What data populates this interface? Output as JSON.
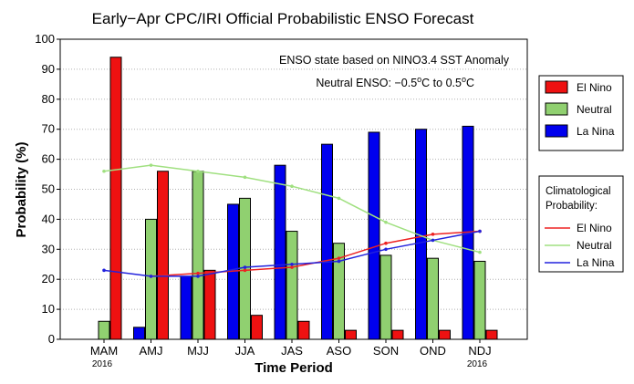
{
  "chart_data": {
    "type": "bar",
    "title": "Early−Apr CPC/IRI Official Probabilistic ENSO Forecast",
    "xlabel": "Time Period",
    "ylabel": "Probability (%)",
    "ylim": [
      0,
      100
    ],
    "yticks": [
      "0",
      "10",
      "20",
      "30",
      "40",
      "50",
      "60",
      "70",
      "80",
      "90",
      "100"
    ],
    "categories": [
      "MAM",
      "AMJ",
      "MJJ",
      "JJA",
      "JAS",
      "ASO",
      "SON",
      "OND",
      "NDJ"
    ],
    "year_labels": {
      "first": "2016",
      "last": "2016"
    },
    "grid": true,
    "annotations": [
      "ENSO state based on NINO3.4 SST Anomaly",
      "Neutral ENSO: −0.5°C to 0.5°C"
    ],
    "series": [
      {
        "name": "La Nina",
        "color": "#0000ee",
        "values": [
          0,
          4,
          21,
          45,
          58,
          65,
          69,
          70,
          71
        ]
      },
      {
        "name": "Neutral",
        "color": "#90d070",
        "values": [
          6,
          40,
          56,
          47,
          36,
          32,
          28,
          27,
          26
        ]
      },
      {
        "name": "El Nino",
        "color": "#ee1111",
        "values": [
          94,
          56,
          23,
          8,
          6,
          3,
          3,
          3,
          3
        ]
      }
    ],
    "bar_legend": {
      "placement": "right",
      "entries": [
        {
          "label": "El Nino",
          "color": "#ee1111"
        },
        {
          "label": "Neutral",
          "color": "#90d070"
        },
        {
          "label": "La Nina",
          "color": "#0000ee"
        }
      ]
    },
    "climatology": {
      "title_lines": [
        "Climatological",
        "Probability:"
      ],
      "series": [
        {
          "name": "El Nino",
          "color": "#ee2222",
          "values": [
            null,
            21,
            22,
            23,
            24,
            27,
            32,
            35,
            36
          ]
        },
        {
          "name": "Neutral",
          "color": "#a0e080",
          "values": [
            56,
            58,
            56,
            54,
            51,
            47,
            39,
            33,
            29
          ]
        },
        {
          "name": "La Nina",
          "color": "#2222dd",
          "values": [
            23,
            21,
            21,
            24,
            25,
            26,
            30,
            33,
            36
          ]
        }
      ]
    }
  }
}
